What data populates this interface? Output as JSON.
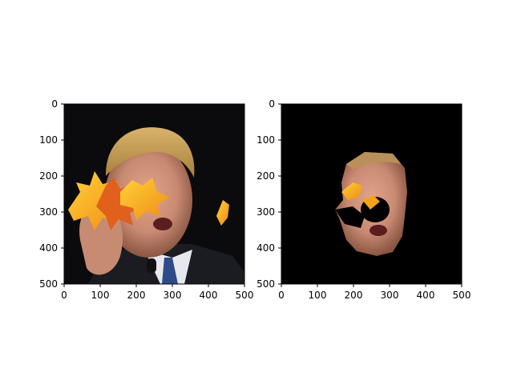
{
  "chart_data": [
    {
      "type": "image",
      "content": "photo of a man's face partially covered by autumn leaves",
      "xlim": [
        0,
        500
      ],
      "ylim": [
        500,
        0
      ],
      "xticks": [
        "0",
        "100",
        "200",
        "300",
        "400",
        "500"
      ],
      "yticks": [
        "0",
        "100",
        "200",
        "300",
        "400",
        "500"
      ],
      "grid": false
    },
    {
      "type": "image",
      "content": "segmented face mask of the same photo on black background",
      "xlim": [
        0,
        500
      ],
      "ylim": [
        500,
        0
      ],
      "xticks": [
        "0",
        "100",
        "200",
        "300",
        "400",
        "500"
      ],
      "yticks": [
        "0",
        "100",
        "200",
        "300",
        "400",
        "500"
      ],
      "grid": false
    }
  ],
  "colors": {
    "background": "#ffffff",
    "axis": "#000000",
    "image_dark": "#0b0b0d",
    "skin": "#c98a72",
    "hair": "#c9a15a",
    "leaf_orange": "#f2a21b",
    "leaf_red": "#d9531e"
  }
}
